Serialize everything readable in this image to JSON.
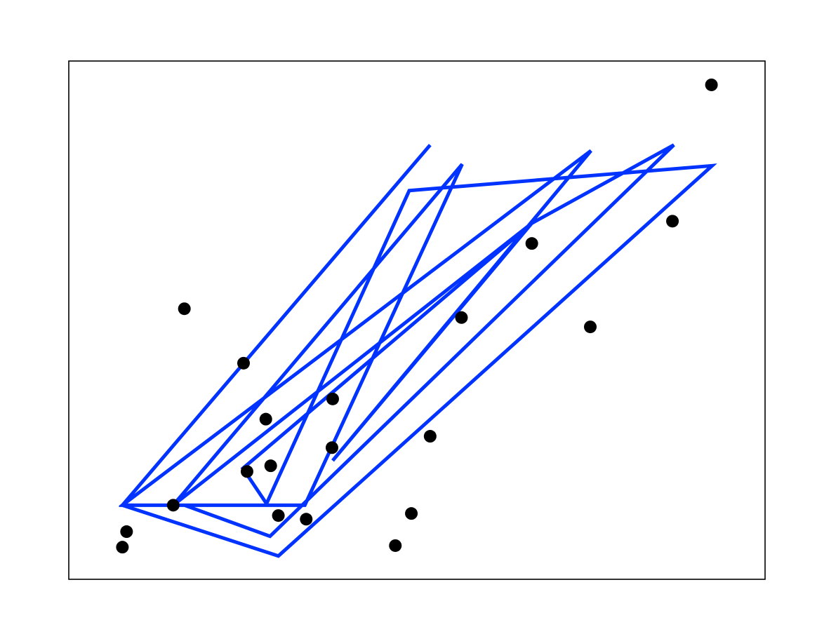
{
  "chart_data": {
    "type": "scatter_line",
    "xlim": [
      0,
      10
    ],
    "ylim": [
      0,
      10
    ],
    "scatter": {
      "color": "#000000",
      "x": [
        9.23,
        8.67,
        6.65,
        7.49,
        5.64,
        1.66,
        2.51,
        3.79,
        2.83,
        5.19,
        3.78,
        2.9,
        2.56,
        1.5,
        0.83,
        0.77,
        3.01,
        3.41,
        4.92,
        4.69
      ],
      "y": [
        9.54,
        6.91,
        6.48,
        4.87,
        5.05,
        5.22,
        4.17,
        3.48,
        3.09,
        2.76,
        2.54,
        2.19,
        2.08,
        1.43,
        0.92,
        0.62,
        1.23,
        1.16,
        1.27,
        0.65
      ]
    },
    "line": {
      "color": "#0033ff",
      "x": [
        5.19,
        0.77,
        3.39,
        5.65,
        1.5,
        6.65,
        2.5,
        2.84,
        4.89,
        9.24,
        3.01,
        0.77,
        7.5,
        3.79,
        6.65,
        8.69,
        2.89,
        1.66
      ],
      "y": [
        8.38,
        1.43,
        1.43,
        8.01,
        1.43,
        6.87,
        2.14,
        1.46,
        7.5,
        7.98,
        0.45,
        1.43,
        8.27,
        2.29,
        6.87,
        8.38,
        0.83,
        1.43
      ]
    }
  }
}
